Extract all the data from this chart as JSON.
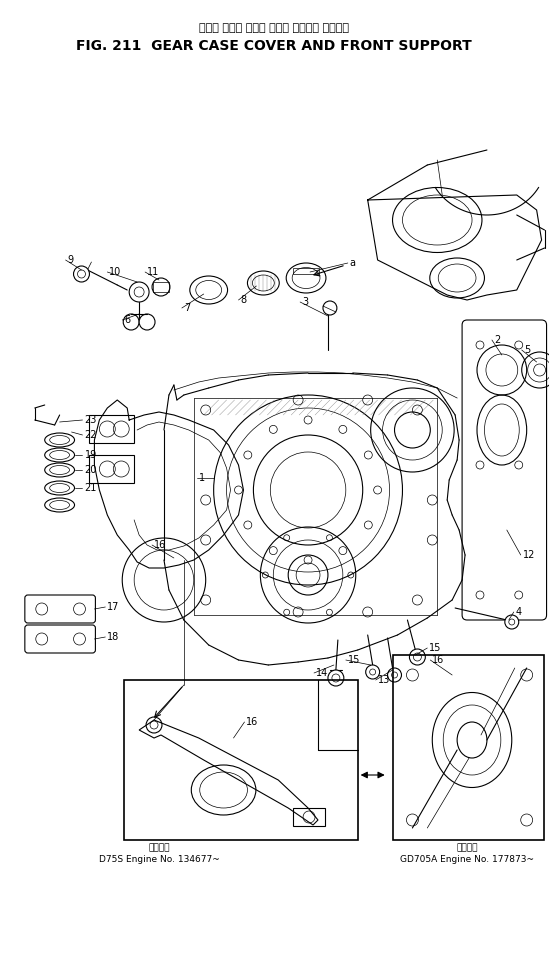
{
  "title_japanese": "ギヤー ケース カバー および フロント サポート",
  "title_english": "FIG. 211  GEAR CASE COVER AND FRONT SUPPORT",
  "bg_color": "#ffffff",
  "fig_width": 5.52,
  "fig_height": 9.73,
  "dpi": 100,
  "caption_left_line1": "適用号機",
  "caption_left_line2": "D75S Engine No. 134677~",
  "caption_right_line1": "適用号機",
  "caption_right_line2": "GD705A Engine No. 177873~"
}
